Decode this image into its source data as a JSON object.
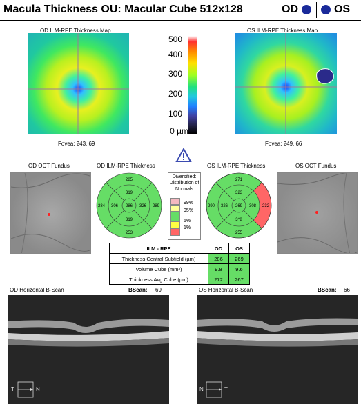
{
  "header": {
    "title": "Macula Thickness OU: Macular Cube 512x128",
    "od": "OD",
    "os": "OS"
  },
  "maps": {
    "od_title": "OD ILM-RPE Thickness Map",
    "os_title": "OS ILM-RPE Thickness Map",
    "od_fovea": "Fovea: 243, 69",
    "os_fovea": "Fovea: 249, 66"
  },
  "color_scale": {
    "labels": [
      "500",
      "400",
      "300",
      "200",
      "100",
      "0 µm"
    ]
  },
  "fundus": {
    "od_title": "OD OCT Fundus",
    "os_title": "OS OCT Fundus"
  },
  "thickness": {
    "od_title": "OD ILM-RPE Thickness",
    "os_title": "OS ILM-RPE Thickness",
    "od_sectors": {
      "outer_sup": "285",
      "inner_sup": "319",
      "outer_temp": "284",
      "inner_temp": "306",
      "center": "286",
      "inner_nas": "326",
      "outer_nas": "289",
      "inner_inf": "319",
      "outer_inf": "253"
    },
    "os_sectors": {
      "outer_sup": "271",
      "inner_sup": "323",
      "outer_temp": "290",
      "inner_temp": "326",
      "center": "269",
      "inner_nas": "308",
      "outer_nas": "232",
      "inner_inf": "3^8",
      "outer_inf": "255"
    }
  },
  "legend": {
    "title": "Diversified: Distribution of Normals",
    "items": [
      "99%",
      "95%",
      "5%",
      "1%"
    ],
    "colors": [
      "#f4b8c0",
      "#ffff99",
      "#66dd66",
      "#ffff44",
      "#ff6666"
    ]
  },
  "table": {
    "header": [
      "ILM - RPE",
      "OD",
      "OS"
    ],
    "rows": [
      {
        "label": "Thickness Central Subfield (µm)",
        "od": "286",
        "os": "269"
      },
      {
        "label": "Volume Cube (mm³)",
        "od": "9.8",
        "os": "9.6"
      },
      {
        "label": "Thickness Avg Cube (µm)",
        "od": "272",
        "os": "267"
      }
    ]
  },
  "bscans": {
    "od_title": "OD Horizontal B-Scan",
    "os_title": "OS Horizontal B-Scan",
    "bscan_label": "BScan:",
    "od_bscan": "69",
    "os_bscan": "66",
    "od_left": "T",
    "od_right": "N",
    "os_left": "N",
    "os_right": "T"
  }
}
